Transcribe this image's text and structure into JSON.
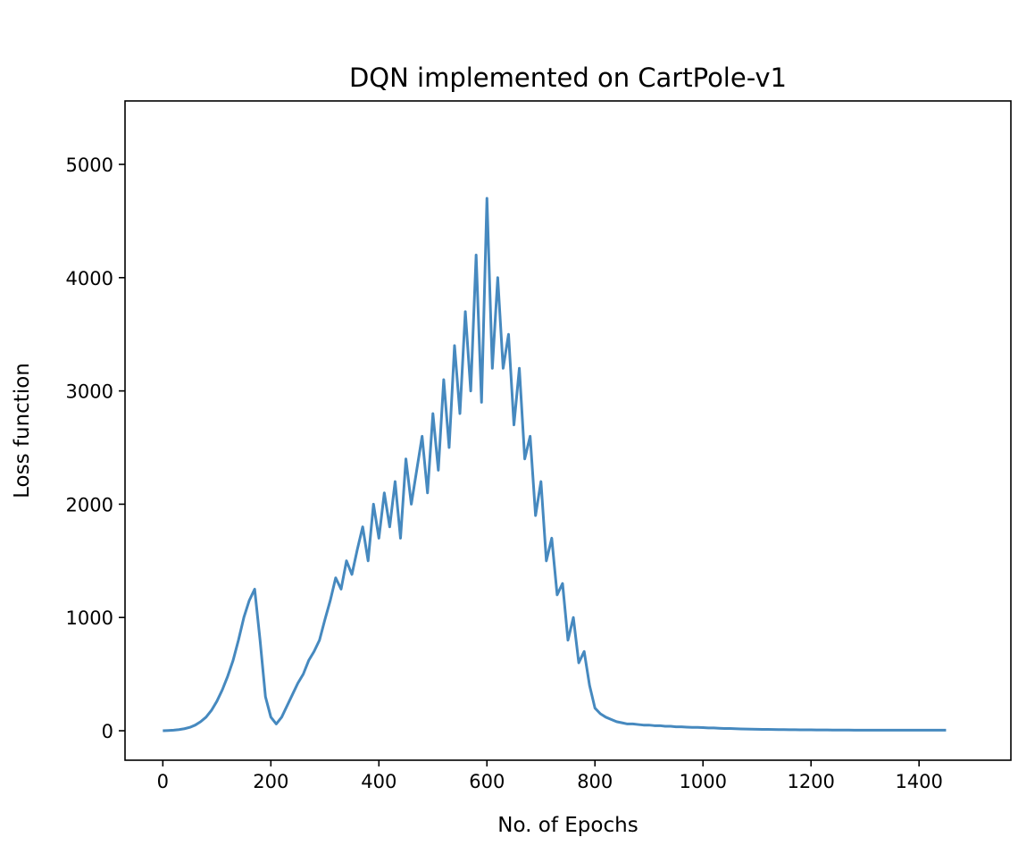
{
  "chart_data": {
    "type": "line",
    "title": "DQN implemented on CartPole-v1",
    "xlabel": "No. of Epochs",
    "ylabel": "Loss function",
    "xlim": [
      -70,
      1570
    ],
    "ylim": [
      -260,
      5560
    ],
    "xticks": [
      0,
      200,
      400,
      600,
      800,
      1000,
      1200,
      1400
    ],
    "yticks": [
      0,
      1000,
      2000,
      3000,
      4000,
      5000
    ],
    "grid": false,
    "legend": "none",
    "line_color": "#4689bf",
    "series": [
      {
        "x_start": 0,
        "x_step": 10,
        "values": [
          0,
          2,
          5,
          10,
          18,
          30,
          50,
          80,
          120,
          180,
          260,
          360,
          480,
          620,
          800,
          1000,
          1150,
          1250,
          800,
          300,
          120,
          60,
          120,
          220,
          320,
          420,
          500,
          620,
          700,
          800,
          980,
          1150,
          1350,
          1250,
          1500,
          1380,
          1600,
          1800,
          1500,
          2000,
          1700,
          2100,
          1800,
          2200,
          1700,
          2400,
          2000,
          2300,
          2600,
          2100,
          2800,
          2300,
          3100,
          2500,
          3400,
          2800,
          3700,
          3000,
          4200,
          2900,
          4700,
          3200,
          4000,
          3200,
          3500,
          2700,
          3200,
          2400,
          2600,
          1900,
          2200,
          1500,
          1700,
          1200,
          1300,
          800,
          1000,
          600,
          700,
          400,
          200,
          150,
          120,
          100,
          80,
          70,
          60,
          60,
          55,
          50,
          50,
          45,
          45,
          40,
          40,
          35,
          35,
          32,
          30,
          30,
          28,
          25,
          25,
          22,
          20,
          20,
          18,
          16,
          15,
          14,
          13,
          12,
          12,
          11,
          10,
          10,
          9,
          9,
          8,
          8,
          8,
          7,
          7,
          7,
          6,
          6,
          6,
          6,
          5,
          5,
          5,
          5,
          5,
          5,
          5,
          5,
          5,
          5,
          5,
          5,
          5,
          5,
          5,
          5,
          5,
          5
        ]
      }
    ]
  }
}
